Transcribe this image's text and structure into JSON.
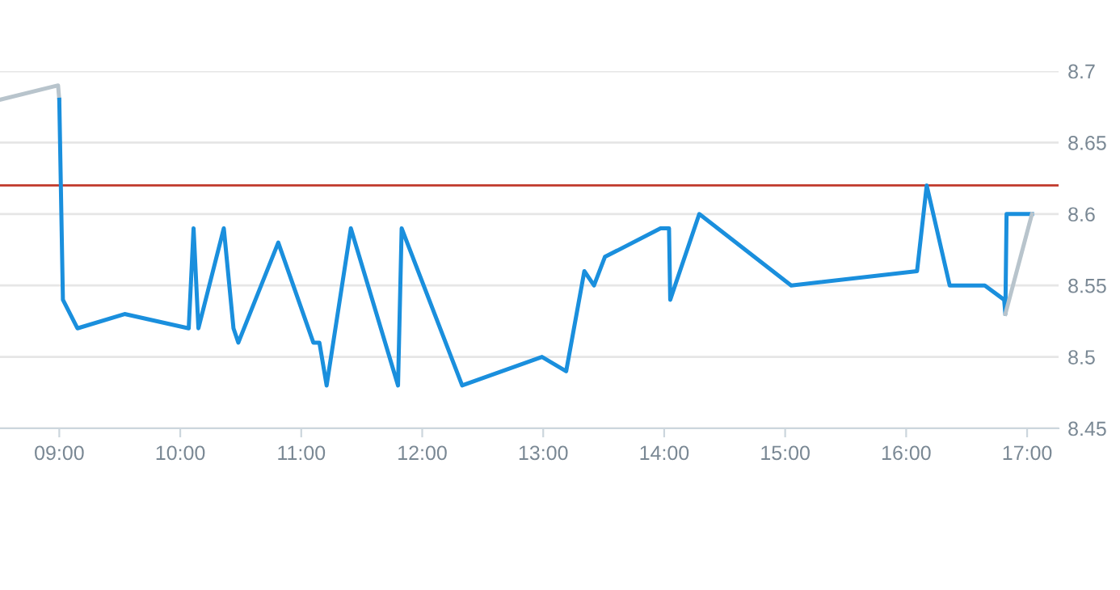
{
  "chart_data": {
    "type": "line",
    "series": [
      {
        "color": "#b8c4cc",
        "x": [
          8.51,
          8.99,
          9.0
        ],
        "values": [
          8.68,
          8.69,
          8.68
        ]
      },
      {
        "color": "#1a8fdd",
        "x": [
          9.0,
          9.03,
          9.15,
          9.54,
          10.07,
          10.11,
          10.15,
          10.36,
          10.44,
          10.48,
          10.81,
          11.1,
          11.15,
          11.21,
          11.41,
          11.8,
          11.83,
          12.33,
          12.99,
          13.19,
          13.34,
          13.42,
          13.51,
          13.97,
          14.04,
          14.05,
          14.29,
          15.05,
          16.09,
          16.17,
          16.36,
          16.65,
          16.81,
          16.82,
          16.83,
          17.04
        ],
        "values": [
          8.68,
          8.54,
          8.52,
          8.53,
          8.52,
          8.59,
          8.52,
          8.59,
          8.52,
          8.51,
          8.58,
          8.51,
          8.51,
          8.48,
          8.59,
          8.48,
          8.59,
          8.48,
          8.5,
          8.49,
          8.56,
          8.55,
          8.57,
          8.59,
          8.59,
          8.54,
          8.6,
          8.55,
          8.56,
          8.62,
          8.55,
          8.55,
          8.54,
          8.53,
          8.6,
          8.6
        ]
      },
      {
        "color": "#b8c4cc",
        "x": [
          16.82,
          17.04
        ],
        "values": [
          8.53,
          8.6
        ]
      }
    ],
    "xlim": [
      8.51,
      17.26
    ],
    "xticks": [
      {
        "value": 9,
        "label": "09:00"
      },
      {
        "value": 10,
        "label": "10:00"
      },
      {
        "value": 11,
        "label": "11:00"
      },
      {
        "value": 12,
        "label": "12:00"
      },
      {
        "value": 13,
        "label": "13:00"
      },
      {
        "value": 14,
        "label": "14:00"
      },
      {
        "value": 15,
        "label": "15:00"
      },
      {
        "value": 16,
        "label": "16:00"
      },
      {
        "value": 17,
        "label": "17:00"
      }
    ],
    "ylim": [
      8.45,
      8.7
    ],
    "yticks": [
      8.45,
      8.5,
      8.55,
      8.6,
      8.65,
      8.7
    ],
    "ref_lines": [
      {
        "axis": "y",
        "value": 8.62,
        "color": "#c0392b"
      }
    ],
    "grid": "y",
    "marker": "none",
    "line_style": "solid",
    "legend": false
  }
}
